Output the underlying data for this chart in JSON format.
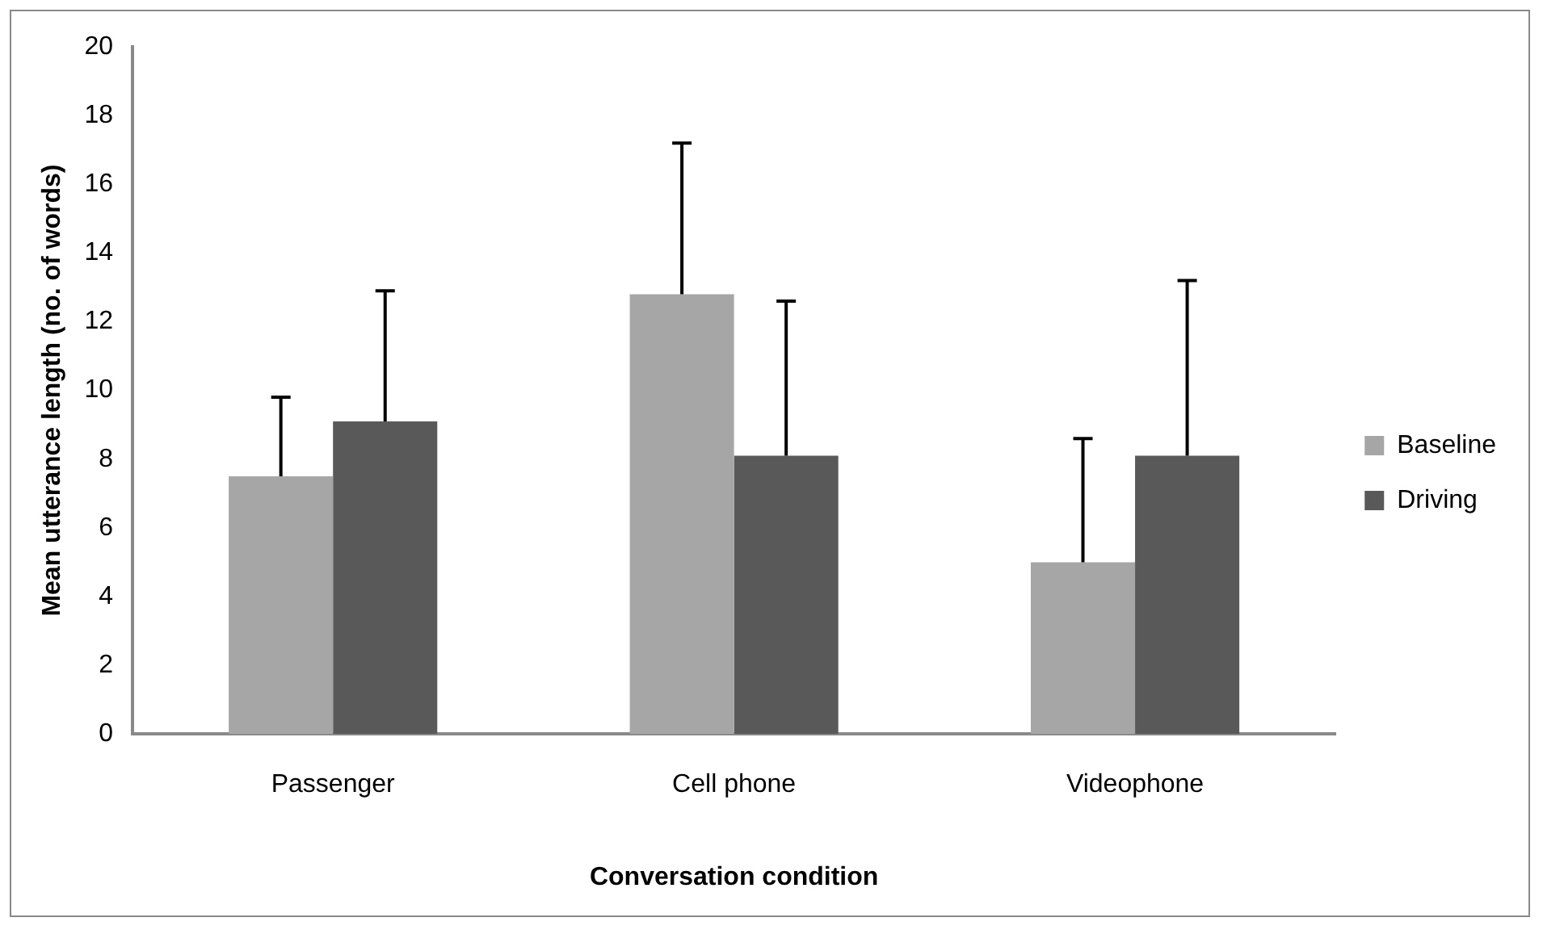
{
  "chart_data": {
    "type": "bar",
    "xlabel": "Conversation condition",
    "ylabel": "Mean utterance length (no. of words)",
    "categories": [
      "Passenger",
      "Cell phone",
      "Videophone"
    ],
    "series": [
      {
        "name": "Baseline",
        "color": "#a6a6a6",
        "values": [
          7.5,
          12.8,
          5.0
        ],
        "errors": [
          [
            7.5,
            9.8
          ],
          [
            12.8,
            17.2
          ],
          [
            5.0,
            8.6
          ]
        ]
      },
      {
        "name": "Driving",
        "color": "#595959",
        "values": [
          9.1,
          8.1,
          8.1
        ],
        "errors": [
          [
            9.1,
            12.9
          ],
          [
            8.1,
            12.6
          ],
          [
            8.1,
            13.2
          ]
        ]
      }
    ],
    "ylim": [
      0,
      20
    ],
    "yticks": [
      0,
      2,
      4,
      6,
      8,
      10,
      12,
      14,
      16,
      18,
      20
    ],
    "grid": false,
    "legend": "right"
  }
}
